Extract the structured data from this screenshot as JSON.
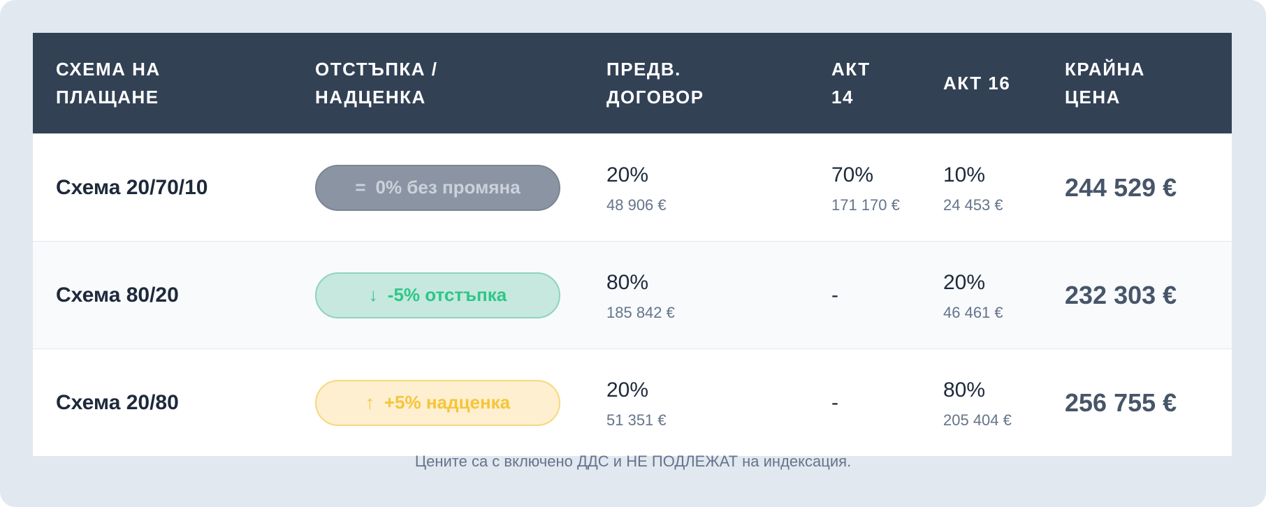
{
  "header": {
    "columns": [
      [
        "СХЕМА НА",
        "ПЛАЩАНЕ"
      ],
      [
        "ОТСТЪПКА /",
        "НАДЦЕНКА"
      ],
      [
        "ПРЕДВ.",
        "ДОГОВОР"
      ],
      [
        "АКТ",
        "14"
      ],
      [
        "АКТ 16"
      ],
      [
        "КРАЙНА",
        "ЦЕНА"
      ]
    ]
  },
  "table": {
    "rows": [
      {
        "scheme": "Схема 20/70/10",
        "badge": {
          "icon": "=",
          "text": "0% без промяна"
        },
        "advance": {
          "percent": "20%",
          "amount": "48 906 €"
        },
        "act14": {
          "percent": "70%",
          "amount": "171 170 €"
        },
        "act16": {
          "percent": "10%",
          "amount": "24 453 €"
        },
        "price": "244 529 €"
      },
      {
        "scheme": "Схема 80/20",
        "badge": {
          "icon": "↓",
          "text": "-5% отстъпка"
        },
        "advance": {
          "percent": "80%",
          "amount": "185 842 €"
        },
        "act14": "-",
        "act16": {
          "percent": "20%",
          "amount": "46 461 €"
        },
        "price": "232 303 €"
      },
      {
        "scheme": "Схема 20/80",
        "badge": {
          "icon": "↑",
          "text": "+5% надценка"
        },
        "advance": {
          "percent": "20%",
          "amount": "51 351 €"
        },
        "act14": "-",
        "act16": {
          "percent": "80%",
          "amount": "205 404 €"
        },
        "price": "256 755 €"
      }
    ]
  },
  "footer": {
    "note": "Цените са с включено ДДС и НЕ ПОДЛЕЖАТ на индексация."
  }
}
